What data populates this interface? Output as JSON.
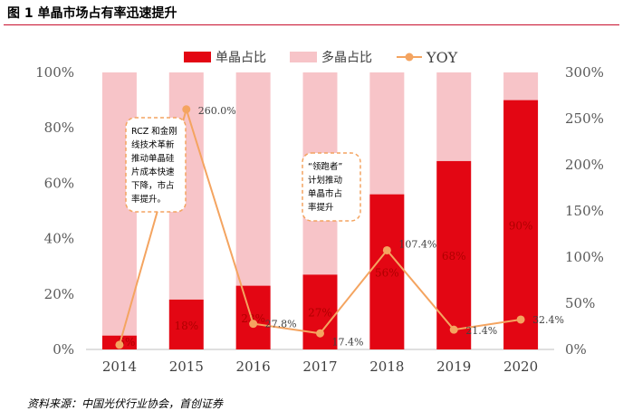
{
  "figure_title": "图 1 单晶市场占有率迅速提升",
  "source": "资料来源：中国光伏行业协会，首创证券",
  "colors": {
    "mono": "#e30613",
    "multi": "#f7c4c8",
    "yoy": "#f4a460",
    "title_rule": "#c8102e"
  },
  "chart_data": {
    "type": "bar",
    "stacked": true,
    "categories": [
      "2014",
      "2015",
      "2016",
      "2017",
      "2018",
      "2019",
      "2020"
    ],
    "series": [
      {
        "name": "单晶占比",
        "values": [
          5,
          18,
          23,
          27,
          56,
          68,
          90
        ],
        "axis": "left",
        "labels": [
          "5%",
          "18%",
          "23%",
          "27%",
          "56%",
          "68%",
          "90%"
        ]
      },
      {
        "name": "多晶占比",
        "values": [
          95,
          82,
          77,
          73,
          44,
          32,
          10
        ],
        "axis": "left"
      },
      {
        "name": "YOY",
        "type": "line",
        "axis": "right",
        "values": [
          5,
          260.0,
          27.8,
          17.4,
          107.4,
          21.4,
          32.4
        ],
        "labels": [
          "",
          "260.0%",
          "27.8%",
          "17.4%",
          "107.4%",
          "21.4%",
          "32.4%"
        ]
      }
    ],
    "ylim": [
      0,
      100
    ],
    "y2lim": [
      0,
      300
    ],
    "yticks": [
      "0%",
      "20%",
      "40%",
      "60%",
      "80%",
      "100%"
    ],
    "y2ticks": [
      "0%",
      "50%",
      "100%",
      "150%",
      "200%",
      "250%",
      "300%"
    ],
    "legend": {
      "position": "top",
      "items": [
        "单晶占比",
        "多晶占比",
        "YOY"
      ]
    },
    "annotations": [
      {
        "year": "2015",
        "lines": [
          "RCZ 和金刚",
          "线技术革新",
          "推动单晶硅",
          "片成本快速",
          "下降，市占",
          "率提升。"
        ]
      },
      {
        "year": "2017",
        "lines": [
          "“领跑者”",
          "计划推动",
          "单晶市占",
          "率提升"
        ]
      }
    ]
  }
}
